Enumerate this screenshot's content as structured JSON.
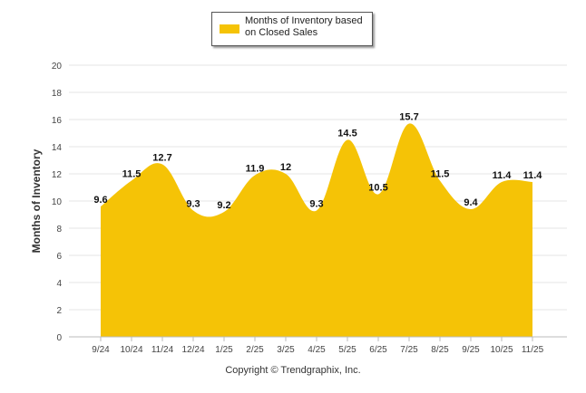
{
  "legend": {
    "label": "Months of Inventory based on Closed Sales",
    "color": "#f5c306"
  },
  "footer": {
    "copyright": "Copyright © Trendgraphix, Inc."
  },
  "chart_data": {
    "type": "area",
    "title": "",
    "xlabel": "",
    "ylabel": "Months of Inventory",
    "ylim": [
      0,
      20
    ],
    "yticks": [
      0,
      2,
      4,
      6,
      8,
      10,
      12,
      14,
      16,
      18,
      20
    ],
    "categories": [
      "9/24",
      "10/24",
      "11/24",
      "12/24",
      "1/25",
      "2/25",
      "3/25",
      "4/25",
      "5/25",
      "6/25",
      "7/25",
      "8/25",
      "9/25",
      "10/25",
      "11/25"
    ],
    "series": [
      {
        "name": "Months of Inventory based on Closed Sales",
        "values": [
          9.6,
          11.5,
          12.7,
          9.3,
          9.2,
          11.9,
          12,
          9.3,
          14.5,
          10.5,
          15.7,
          11.5,
          9.4,
          11.4,
          11.4
        ],
        "labels": [
          "9.6",
          "11.5",
          "12.7",
          "9.3",
          "9.2",
          "11.9",
          "12",
          "9.3",
          "14.5",
          "10.5",
          "15.7",
          "11.5",
          "9.4",
          "11.4",
          "11.4"
        ]
      }
    ],
    "grid": true,
    "legend_position": "top-center"
  }
}
